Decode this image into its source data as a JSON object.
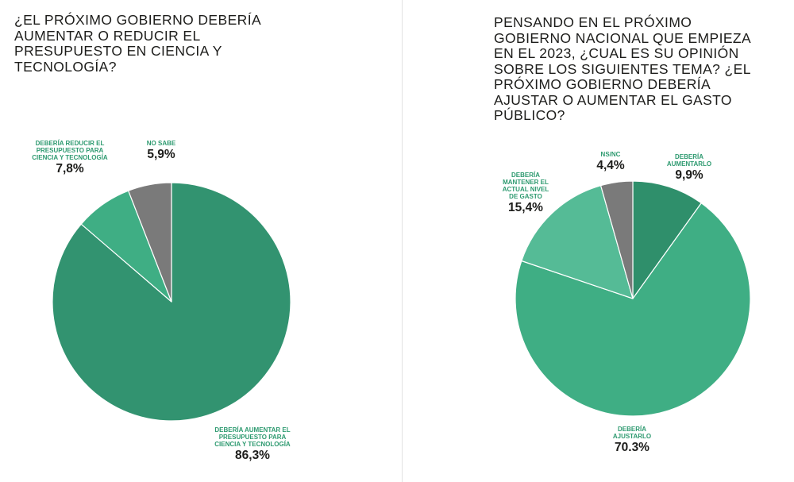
{
  "chart_data": [
    {
      "type": "pie",
      "title": "¿EL PRÓXIMO GOBIERNO DEBERÍA\nAUMENTAR O REDUCIR EL\nPRESUPUESTO EN CIENCIA Y\nTECNOLOGÍA?",
      "slices": [
        {
          "label": "DEBERÍA AUMENTAR EL\nPRESUPUESTO PARA\nCIENCIA Y TECNOLOGÍA",
          "value": 86.3,
          "display": "86,3%",
          "color": "#329370"
        },
        {
          "label": "DEBERÍA REDUCIR EL\nPRESUPUESTO PARA\nCIENCIA Y TECNOLOGÍA",
          "value": 7.8,
          "display": "7,8%",
          "color": "#3fae84"
        },
        {
          "label": "NO SABE",
          "value": 5.9,
          "display": "5,9%",
          "color": "#7a7a7a"
        }
      ]
    },
    {
      "type": "pie",
      "title": "PENSANDO EN EL PRÓXIMO\nGOBIERNO NACIONAL QUE EMPIEZA\nEN EL 2023, ¿CUAL ES SU OPINIÓN\nSOBRE LOS SIGUIENTES TEMA? ¿EL\nPRÓXIMO GOBIERNO DEBERÍA\nAJUSTAR O AUMENTAR EL GASTO\nPÚBLICO?",
      "slices": [
        {
          "label": "DEBERÍA\nAUMENTARLO",
          "value": 9.9,
          "display": "9,9%",
          "color": "#2f8f6b"
        },
        {
          "label": "DEBERÍA\nAJUSTARLO",
          "value": 70.3,
          "display": "70.3%",
          "color": "#3fae84"
        },
        {
          "label": "DEBERÍA\nMANTENER EL\nACTUAL NIVEL\nDE GASTO",
          "value": 15.4,
          "display": "15,4%",
          "color": "#55bb96"
        },
        {
          "label": "NS/NC",
          "value": 4.4,
          "display": "4,4%",
          "color": "#7a7a7a"
        }
      ]
    }
  ]
}
